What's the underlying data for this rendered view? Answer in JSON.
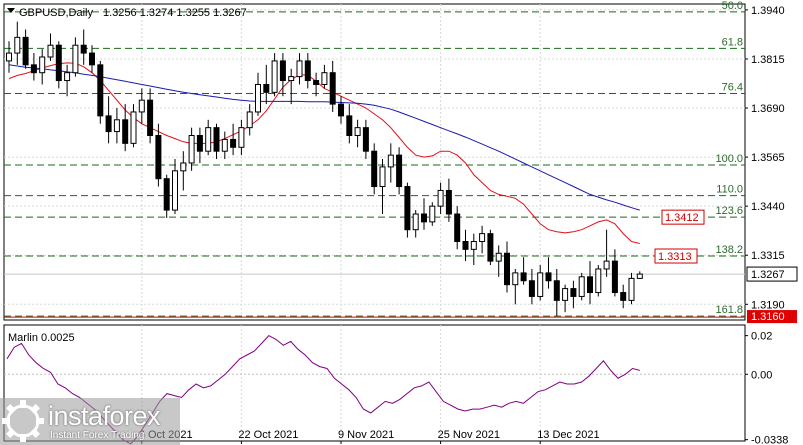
{
  "chart_data": [
    {
      "type": "candlestick",
      "title": "GBPUSD,Daily",
      "ohlc_label": "1.3256 1.3274 1.3255 1.3267",
      "ylim": [
        1.315,
        1.3955
      ],
      "y_ticks": [
        "1.3940",
        "1.3815",
        "1.3690",
        "1.3565",
        "1.3440",
        "1.3315",
        "1.3190"
      ],
      "x_ticks": [
        "6 Oct 2021",
        "22 Oct 2021",
        "9 Nov 2021",
        "25 Nov 2021",
        "13 Dec 2021"
      ],
      "x_tick_dates": [
        "2021-10-06",
        "2021-10-22",
        "2021-11-09",
        "2021-11-25",
        "2021-12-13"
      ],
      "first_date": "2021-09-14",
      "candles": [
        [
          1.381,
          1.386,
          1.378,
          1.383
        ],
        [
          1.383,
          1.391,
          1.38,
          1.387
        ],
        [
          1.387,
          1.389,
          1.379,
          1.38
        ],
        [
          1.38,
          1.383,
          1.376,
          1.378
        ],
        [
          1.378,
          1.384,
          1.375,
          1.382
        ],
        [
          1.382,
          1.388,
          1.381,
          1.385
        ],
        [
          1.385,
          1.386,
          1.374,
          1.376
        ],
        [
          1.376,
          1.38,
          1.372,
          1.378
        ],
        [
          1.378,
          1.387,
          1.377,
          1.385
        ],
        [
          1.385,
          1.389,
          1.38,
          1.383
        ],
        [
          1.383,
          1.385,
          1.378,
          1.38
        ],
        [
          1.38,
          1.381,
          1.365,
          1.367
        ],
        [
          1.367,
          1.372,
          1.36,
          1.363
        ],
        [
          1.363,
          1.369,
          1.36,
          1.366
        ],
        [
          1.366,
          1.37,
          1.358,
          1.36
        ],
        [
          1.36,
          1.37,
          1.359,
          1.368
        ],
        [
          1.368,
          1.374,
          1.365,
          1.371
        ],
        [
          1.371,
          1.374,
          1.36,
          1.362
        ],
        [
          1.362,
          1.365,
          1.349,
          1.351
        ],
        [
          1.351,
          1.352,
          1.341,
          1.343
        ],
        [
          1.343,
          1.356,
          1.342,
          1.353
        ],
        [
          1.353,
          1.358,
          1.348,
          1.355
        ],
        [
          1.355,
          1.364,
          1.353,
          1.362
        ],
        [
          1.362,
          1.364,
          1.355,
          1.358
        ],
        [
          1.358,
          1.366,
          1.357,
          1.364
        ],
        [
          1.364,
          1.365,
          1.356,
          1.358
        ],
        [
          1.358,
          1.363,
          1.356,
          1.361
        ],
        [
          1.361,
          1.365,
          1.357,
          1.359
        ],
        [
          1.359,
          1.366,
          1.357,
          1.364
        ],
        [
          1.364,
          1.37,
          1.362,
          1.368
        ],
        [
          1.368,
          1.378,
          1.367,
          1.375
        ],
        [
          1.375,
          1.38,
          1.37,
          1.373
        ],
        [
          1.373,
          1.383,
          1.372,
          1.381
        ],
        [
          1.381,
          1.383,
          1.372,
          1.376
        ],
        [
          1.376,
          1.379,
          1.37,
          1.377
        ],
        [
          1.377,
          1.383,
          1.375,
          1.381
        ],
        [
          1.381,
          1.383,
          1.374,
          1.376
        ],
        [
          1.376,
          1.378,
          1.372,
          1.375
        ],
        [
          1.375,
          1.38,
          1.374,
          1.378
        ],
        [
          1.378,
          1.381,
          1.368,
          1.37
        ],
        [
          1.37,
          1.372,
          1.365,
          1.367
        ],
        [
          1.367,
          1.37,
          1.36,
          1.362
        ],
        [
          1.362,
          1.366,
          1.359,
          1.364
        ],
        [
          1.364,
          1.366,
          1.356,
          1.358
        ],
        [
          1.358,
          1.36,
          1.347,
          1.349
        ],
        [
          1.349,
          1.356,
          1.342,
          1.354
        ],
        [
          1.354,
          1.36,
          1.35,
          1.357
        ],
        [
          1.357,
          1.359,
          1.347,
          1.349
        ],
        [
          1.349,
          1.35,
          1.336,
          1.338
        ],
        [
          1.338,
          1.343,
          1.336,
          1.342
        ],
        [
          1.342,
          1.346,
          1.338,
          1.34
        ],
        [
          1.34,
          1.345,
          1.339,
          1.344
        ],
        [
          1.344,
          1.35,
          1.342,
          1.348
        ],
        [
          1.348,
          1.351,
          1.34,
          1.342
        ],
        [
          1.342,
          1.344,
          1.333,
          1.335
        ],
        [
          1.335,
          1.338,
          1.33,
          1.333
        ],
        [
          1.333,
          1.337,
          1.329,
          1.335
        ],
        [
          1.335,
          1.339,
          1.332,
          1.337
        ],
        [
          1.337,
          1.338,
          1.329,
          1.33
        ],
        [
          1.33,
          1.334,
          1.326,
          1.332
        ],
        [
          1.332,
          1.335,
          1.322,
          1.324
        ],
        [
          1.324,
          1.328,
          1.319,
          1.327
        ],
        [
          1.327,
          1.331,
          1.324,
          1.325
        ],
        [
          1.325,
          1.328,
          1.319,
          1.321
        ],
        [
          1.321,
          1.329,
          1.32,
          1.327
        ],
        [
          1.327,
          1.331,
          1.323,
          1.325
        ],
        [
          1.325,
          1.328,
          1.316,
          1.32
        ],
        [
          1.32,
          1.324,
          1.317,
          1.323
        ],
        [
          1.323,
          1.325,
          1.318,
          1.321
        ],
        [
          1.321,
          1.327,
          1.32,
          1.326
        ],
        [
          1.326,
          1.33,
          1.319,
          1.322
        ],
        [
          1.322,
          1.329,
          1.321,
          1.328
        ],
        [
          1.328,
          1.338,
          1.326,
          1.33
        ],
        [
          1.33,
          1.333,
          1.321,
          1.322
        ],
        [
          1.322,
          1.324,
          1.318,
          1.32
        ],
        [
          1.32,
          1.327,
          1.319,
          1.3256
        ],
        [
          1.3256,
          1.3274,
          1.3255,
          1.3267
        ]
      ],
      "series": [
        {
          "name": "",
          "color": "#e0101a",
          "values": [
            1.3765,
            1.3773,
            1.3778,
            1.3785,
            1.3792,
            1.3798,
            1.3803,
            1.3805,
            1.3804,
            1.3795,
            1.378,
            1.376,
            1.3735,
            1.371,
            1.3685,
            1.3665,
            1.365,
            1.364,
            1.363,
            1.362,
            1.3612,
            1.3604,
            1.36,
            1.36,
            1.36,
            1.3604,
            1.3612,
            1.3622,
            1.3632,
            1.3645,
            1.366,
            1.3683,
            1.3713,
            1.3743,
            1.3763,
            1.3775,
            1.3774,
            1.3758,
            1.374,
            1.373,
            1.372,
            1.371,
            1.37,
            1.369,
            1.3675,
            1.366,
            1.364,
            1.3615,
            1.359,
            1.357,
            1.3565,
            1.3568,
            1.358,
            1.358,
            1.357,
            1.355,
            1.352,
            1.35,
            1.348,
            1.347,
            1.3465,
            1.346,
            1.3445,
            1.342,
            1.3395,
            1.338,
            1.3375,
            1.3372,
            1.3375,
            1.338,
            1.339,
            1.34,
            1.3405,
            1.3395,
            1.337,
            1.335,
            1.3345
          ]
        },
        {
          "name": "",
          "color": "#1a1ab0",
          "values": [
            1.38,
            1.3797,
            1.3794,
            1.3792,
            1.379,
            1.3787,
            1.3785,
            1.3782,
            1.378,
            1.3776,
            1.3773,
            1.377,
            1.3766,
            1.3762,
            1.3758,
            1.3754,
            1.375,
            1.3746,
            1.3742,
            1.3738,
            1.3734,
            1.373,
            1.3727,
            1.3724,
            1.3721,
            1.3718,
            1.3715,
            1.3712,
            1.371,
            1.3708,
            1.3707,
            1.3707,
            1.3707,
            1.3707,
            1.3707,
            1.3707,
            1.3706,
            1.3706,
            1.3706,
            1.3705,
            1.3704,
            1.3703,
            1.3702,
            1.37,
            1.3697,
            1.3692,
            1.3687,
            1.368,
            1.3672,
            1.3664,
            1.3656,
            1.3648,
            1.364,
            1.3632,
            1.3624,
            1.3616,
            1.3607,
            1.3598,
            1.3589,
            1.358,
            1.357,
            1.356,
            1.355,
            1.354,
            1.353,
            1.352,
            1.351,
            1.35,
            1.349,
            1.348,
            1.347,
            1.3463,
            1.3456,
            1.345,
            1.3443,
            1.3436,
            1.343
          ]
        }
      ],
      "hlines": [
        {
          "label": "50.0",
          "value": 1.3935
        },
        {
          "label": "61.8",
          "value": 1.3842
        },
        {
          "label": "76.4",
          "value": 1.3727
        },
        {
          "label": "100.0",
          "value": 1.3545
        },
        {
          "label": "110.0",
          "value": 1.3467
        },
        {
          "label": "123.6",
          "value": 1.3412
        },
        {
          "label": "138.2",
          "value": 1.3313
        },
        {
          "label": "161.8",
          "value": 1.316
        }
      ],
      "price_tags": [
        {
          "label": "1.3412",
          "value": 1.3412
        },
        {
          "label": "1.3313",
          "value": 1.3313
        },
        {
          "label": "1.3160",
          "value": 1.316
        },
        {
          "label": "1.3267",
          "value": 1.3267
        }
      ]
    },
    {
      "type": "line",
      "title": "Marlin 0.0025",
      "ylim": [
        -0.0345,
        0.0255
      ],
      "y_ticks": [
        "0.02",
        "0.00",
        "-0.0338"
      ],
      "color": "#800080",
      "values": [
        0.008,
        0.014,
        0.016,
        0.01,
        0.006,
        0.003,
        0.001,
        -0.005,
        -0.007,
        -0.01,
        -0.012,
        -0.015,
        -0.018,
        -0.022,
        -0.026,
        -0.03,
        -0.034,
        -0.036,
        -0.032,
        -0.026,
        -0.02,
        -0.014,
        -0.01,
        -0.011,
        -0.012,
        -0.008,
        -0.005,
        -0.007,
        -0.006,
        -0.003,
        0.0,
        0.004,
        0.008,
        0.01,
        0.012,
        0.016,
        0.02,
        0.018,
        0.015,
        0.017,
        0.013,
        0.01,
        0.006,
        0.004,
        0.003,
        -0.002,
        -0.005,
        -0.008,
        -0.012,
        -0.018,
        -0.02,
        -0.017,
        -0.014,
        -0.015,
        -0.013,
        -0.01,
        -0.007,
        -0.006,
        -0.004,
        -0.009,
        -0.014,
        -0.016,
        -0.018,
        -0.019,
        -0.018,
        -0.018,
        -0.017,
        -0.016,
        -0.017,
        -0.015,
        -0.014,
        -0.015,
        -0.012,
        -0.009,
        -0.008,
        -0.006,
        -0.004,
        -0.005,
        -0.005,
        -0.004,
        -0.001,
        0.003,
        0.007,
        0.002,
        -0.002,
        0.0,
        0.003,
        0.002
      ]
    }
  ],
  "logo": {
    "name": "instaforex",
    "subtitle": "Instant Forex Trading"
  }
}
